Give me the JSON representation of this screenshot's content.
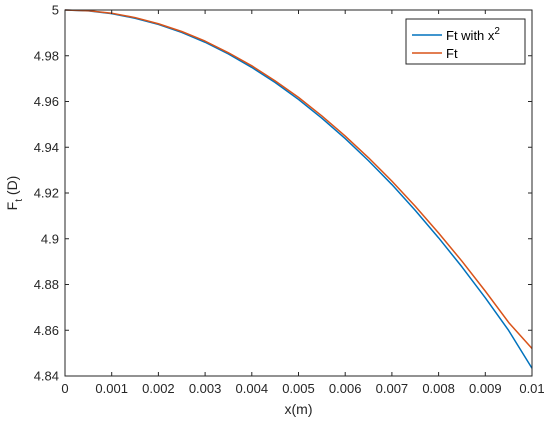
{
  "chart_data": {
    "type": "line",
    "title": "",
    "xlabel": "x(m)",
    "ylabel": {
      "base": "F",
      "sub": "t",
      "unit": " (D)"
    },
    "xlim": [
      0,
      0.01
    ],
    "ylim": [
      4.84,
      5.0
    ],
    "xticks": [
      0,
      0.001,
      0.002,
      0.003,
      0.004,
      0.005,
      0.006,
      0.007,
      0.008,
      0.009,
      0.01
    ],
    "xtick_labels": [
      "0",
      "0.001",
      "0.002",
      "0.003",
      "0.004",
      "0.005",
      "0.006",
      "0.007",
      "0.008",
      "0.009",
      "0.01"
    ],
    "yticks": [
      4.84,
      4.86,
      4.88,
      4.9,
      4.92,
      4.94,
      4.96,
      4.98,
      5.0
    ],
    "ytick_labels": [
      "4.84",
      "4.86",
      "4.88",
      "4.9",
      "4.92",
      "4.94",
      "4.96",
      "4.98",
      "5"
    ],
    "grid": false,
    "legend_position": "top-right",
    "x": [
      0,
      0.0005,
      0.001,
      0.0015,
      0.002,
      0.0025,
      0.003,
      0.0035,
      0.004,
      0.0045,
      0.005,
      0.0055,
      0.006,
      0.0065,
      0.007,
      0.0075,
      0.008,
      0.0085,
      0.009,
      0.0095,
      0.01
    ],
    "series": [
      {
        "name": "Ft with x",
        "name_sup": "2",
        "color": "#0072BD",
        "values": [
          5.0,
          4.9996,
          4.9984,
          4.9964,
          4.9937,
          4.9902,
          4.9859,
          4.9808,
          4.9749,
          4.9683,
          4.9609,
          4.9527,
          4.9438,
          4.9341,
          4.9237,
          4.9124,
          4.9004,
          4.8877,
          4.8742,
          4.8599,
          4.8434
        ]
      },
      {
        "name": "Ft",
        "color": "#D95319",
        "values": [
          5.0,
          4.9997,
          4.9986,
          4.9967,
          4.994,
          4.9906,
          4.9864,
          4.9813,
          4.9756,
          4.969,
          4.9618,
          4.9537,
          4.9449,
          4.9354,
          4.9252,
          4.9142,
          4.9025,
          4.8902,
          4.8771,
          4.8634,
          4.852
        ]
      }
    ]
  }
}
